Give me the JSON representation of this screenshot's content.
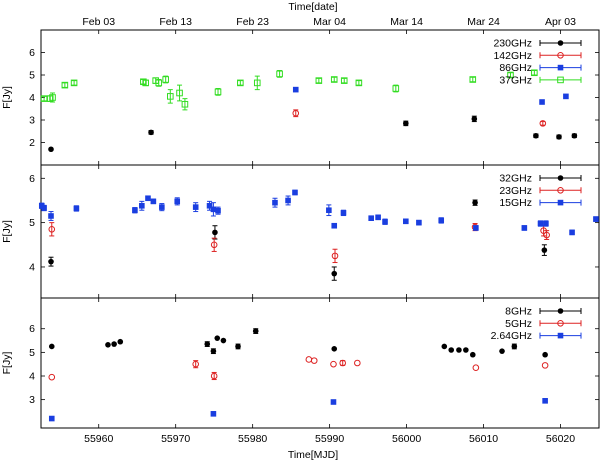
{
  "chart_data": {
    "type": "scatter",
    "xlabel_bottom": "Time[MJD]",
    "xlabel_top": "Time[date]",
    "x_range": [
      55952.5,
      56025
    ],
    "x_ticks": [
      55960,
      55970,
      55980,
      55990,
      56000,
      56010,
      56020
    ],
    "top_ticks": [
      {
        "label": "Feb 03",
        "mjd": 55960
      },
      {
        "label": "Feb 13",
        "mjd": 55970
      },
      {
        "label": "Feb 23",
        "mjd": 55980
      },
      {
        "label": "Mar 04",
        "mjd": 55990
      },
      {
        "label": "Mar 14",
        "mjd": 56000
      },
      {
        "label": "Mar 24",
        "mjd": 56010
      },
      {
        "label": "Apr 03",
        "mjd": 56020
      }
    ],
    "panels": [
      {
        "ylabel": "F[Jy]",
        "ylim": [
          1,
          7
        ],
        "yticks": [
          2,
          3,
          4,
          5,
          6
        ],
        "legend_position": "top-right",
        "series": [
          {
            "name": "230GHz",
            "color": "#000000",
            "marker": "circle",
            "points": [
              [
                55953.8,
                1.7,
                0
              ],
              [
                55966.8,
                2.45,
                0.08
              ],
              [
                55999.9,
                2.85,
                0.1
              ],
              [
                56008.8,
                3.05,
                0.12
              ],
              [
                56016.8,
                2.3,
                0.08
              ],
              [
                56019.8,
                2.25,
                0.08
              ],
              [
                56021.8,
                2.3,
                0.08
              ]
            ]
          },
          {
            "name": "142GHz",
            "color": "#dd2222",
            "marker": "circle-open",
            "points": [
              [
                55985.6,
                3.3,
                0.15
              ],
              [
                56017.7,
                2.85,
                0.08
              ]
            ]
          },
          {
            "name": "86GHz",
            "color": "#1a3ee0",
            "marker": "square",
            "points": [
              [
                55985.6,
                4.35,
                0
              ],
              [
                56017.6,
                3.8,
                0
              ],
              [
                56020.7,
                4.05,
                0
              ]
            ]
          },
          {
            "name": "37GHz",
            "color": "#33dd22",
            "marker": "square-open",
            "points": [
              [
                55952.9,
                3.95,
                0.1
              ],
              [
                55953.7,
                3.95,
                0.12
              ],
              [
                55954,
                4,
                0.2
              ],
              [
                55955.6,
                4.55,
                0.1
              ],
              [
                55956.8,
                4.65,
                0.1
              ],
              [
                55965.8,
                4.7,
                0.1
              ],
              [
                55966.1,
                4.65,
                0.12
              ],
              [
                55967.4,
                4.75,
                0.12
              ],
              [
                55967.8,
                4.65,
                0.15
              ],
              [
                55968.7,
                4.8,
                0.15
              ],
              [
                55969.3,
                4.05,
                0.3
              ],
              [
                55970.5,
                4.2,
                0.35
              ],
              [
                55971.2,
                3.7,
                0.25
              ],
              [
                55975.5,
                4.25,
                0.15
              ],
              [
                55978.4,
                4.65,
                0.1
              ],
              [
                55980.6,
                4.65,
                0.3
              ],
              [
                55983.5,
                5.05,
                0.15
              ],
              [
                55988.6,
                4.75,
                0.1
              ],
              [
                55990.6,
                4.8,
                0.1
              ],
              [
                55991.9,
                4.75,
                0.1
              ],
              [
                55993.8,
                4.65,
                0.1
              ],
              [
                55998.6,
                4.4,
                0.15
              ],
              [
                56008.6,
                4.8,
                0.1
              ],
              [
                56013.5,
                5,
                0.1
              ],
              [
                56016.6,
                5.1,
                0.1
              ]
            ]
          }
        ]
      },
      {
        "ylabel": "F[Jy]",
        "ylim": [
          3.3,
          6.3
        ],
        "yticks": [
          4,
          5,
          6
        ],
        "legend_position": "top-right",
        "series": [
          {
            "name": "32GHz",
            "color": "#000000",
            "marker": "circle",
            "points": [
              [
                55953.8,
                4.12,
                0.1
              ],
              [
                55975.1,
                4.78,
                0.15
              ],
              [
                55990.6,
                3.85,
                0.15
              ],
              [
                56008.9,
                5.45,
                0.06
              ],
              [
                56017.9,
                4.38,
                0.12
              ]
            ]
          },
          {
            "name": "23GHz",
            "color": "#dd2222",
            "marker": "circle-open",
            "points": [
              [
                55953.9,
                4.85,
                0.15
              ],
              [
                55975,
                4.5,
                0.15
              ],
              [
                55990.7,
                4.25,
                0.15
              ],
              [
                56008.9,
                4.9,
                0.08
              ],
              [
                56017.8,
                4.82,
                0.12
              ],
              [
                56018.2,
                4.72,
                0.1
              ]
            ]
          },
          {
            "name": "15GHz",
            "color": "#1a3ee0",
            "marker": "square",
            "points": [
              [
                55952.6,
                5.38,
                0.06
              ],
              [
                55952.9,
                5.33,
                0.06
              ],
              [
                55953.8,
                5.15,
                0.1
              ],
              [
                55957.1,
                5.32,
                0.06
              ],
              [
                55964.7,
                5.28,
                0.06
              ],
              [
                55965.6,
                5.38,
                0.1
              ],
              [
                55966.4,
                5.55,
                0.05
              ],
              [
                55967.1,
                5.48,
                0.05
              ],
              [
                55968.2,
                5.35,
                0.08
              ],
              [
                55970.2,
                5.48,
                0.08
              ],
              [
                55972.6,
                5.35,
                0.1
              ],
              [
                55974.4,
                5.38,
                0.1
              ],
              [
                55974.9,
                5.3,
                0.15
              ],
              [
                55975.5,
                5.27,
                0.08
              ],
              [
                55982.9,
                5.45,
                0.1
              ],
              [
                55984.6,
                5.5,
                0.1
              ],
              [
                55985.5,
                5.68,
                0.05
              ],
              [
                55989.9,
                5.28,
                0.12
              ],
              [
                55990.6,
                4.93,
                0.05
              ],
              [
                55991.8,
                5.22,
                0.06
              ],
              [
                55995.4,
                5.1,
                0.05
              ],
              [
                55996.3,
                5.12,
                0.05
              ],
              [
                55997.2,
                5.02,
                0.06
              ],
              [
                55999.9,
                5.03,
                0.05
              ],
              [
                56001.6,
                5,
                0.05
              ],
              [
                56004.5,
                5.05,
                0.06
              ],
              [
                56009,
                4.88,
                0.05
              ],
              [
                56015.3,
                4.88,
                0.05
              ],
              [
                56017.4,
                4.98,
                0.06
              ],
              [
                56018.1,
                4.98,
                0.06
              ],
              [
                56021.5,
                4.78,
                0.05
              ],
              [
                56024.6,
                5.08,
                0.05
              ]
            ]
          }
        ]
      },
      {
        "ylabel": "F[Jy]",
        "ylim": [
          1.8,
          7.3
        ],
        "yticks": [
          3,
          4,
          5,
          6
        ],
        "legend_position": "top-right",
        "series": [
          {
            "name": "8GHz",
            "color": "#000000",
            "marker": "circle",
            "points": [
              [
                55953.9,
                5.25,
                0
              ],
              [
                55961.2,
                5.32,
                0
              ],
              [
                55962,
                5.35,
                0
              ],
              [
                55962.8,
                5.45,
                0
              ],
              [
                55974.1,
                5.35,
                0.1
              ],
              [
                55974.9,
                5.05,
                0.1
              ],
              [
                55975.4,
                5.6,
                0
              ],
              [
                55976.2,
                5.5,
                0
              ],
              [
                55978.1,
                5.25,
                0.1
              ],
              [
                55980.4,
                5.9,
                0.1
              ],
              [
                55990.6,
                5.15,
                0
              ],
              [
                56004.9,
                5.25,
                0
              ],
              [
                56005.8,
                5.1,
                0
              ],
              [
                56006.8,
                5.1,
                0
              ],
              [
                56007.7,
                5.1,
                0
              ],
              [
                56008.6,
                4.9,
                0
              ],
              [
                56012.4,
                5.05,
                0
              ],
              [
                56014,
                5.25,
                0.1
              ],
              [
                56018,
                4.9,
                0
              ]
            ]
          },
          {
            "name": "5GHz",
            "color": "#dd2222",
            "marker": "circle-open",
            "points": [
              [
                55953.9,
                3.95,
                0
              ],
              [
                55972.6,
                4.5,
                0.15
              ],
              [
                55975,
                4,
                0.15
              ],
              [
                55987.3,
                4.7,
                0
              ],
              [
                55988,
                4.65,
                0
              ],
              [
                55990.5,
                4.5,
                0
              ],
              [
                55991.7,
                4.55,
                0.1
              ],
              [
                55993.6,
                4.55,
                0
              ],
              [
                56009,
                4.35,
                0
              ],
              [
                56018,
                4.45,
                0
              ]
            ]
          },
          {
            "name": "2.64GHz",
            "color": "#1a3ee0",
            "marker": "square",
            "points": [
              [
                55953.9,
                2.2,
                0
              ],
              [
                55974.9,
                2.4,
                0
              ],
              [
                55990.5,
                2.9,
                0
              ],
              [
                56018,
                2.95,
                0
              ]
            ]
          }
        ]
      }
    ]
  }
}
